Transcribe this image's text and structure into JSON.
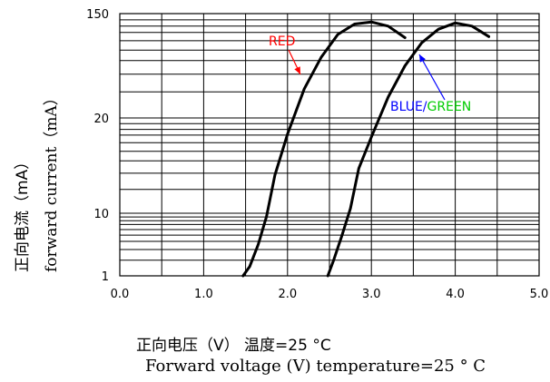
{
  "chart_data": {
    "type": "line",
    "xlabel_cn": "正向电压（V） 温度=25 °C",
    "xlabel_en": "Forward voltage (V) temperature=25 ° C",
    "ylabel_cn": "正向电流（mA）",
    "ylabel_en": "forward current（mA）",
    "x_ticks": [
      "0.0",
      "1.0",
      "2.0",
      "3.0",
      "4.0",
      "5.0"
    ],
    "y_ticks": [
      "1",
      "10",
      "20",
      "150"
    ],
    "xlim": [
      0,
      5
    ],
    "grid": true,
    "colors": {
      "red": "#ff0000",
      "blue": "#0000ff",
      "green": "#00cc00",
      "curve": "#000000"
    },
    "annotations": {
      "red": "RED",
      "blue": "BLUE/",
      "green": "GREEN"
    },
    "series": [
      {
        "name": "RED",
        "x": [
          1.47,
          1.55,
          1.65,
          1.75,
          1.85,
          2.0,
          2.2,
          2.4,
          2.6,
          2.8,
          3.0,
          3.2,
          3.4
        ],
        "y_band": [
          0.0,
          0.15,
          0.5,
          0.95,
          1.4,
          1.83,
          2.28,
          2.58,
          2.8,
          2.9,
          2.92,
          2.88,
          2.77
        ]
      },
      {
        "name": "BLUE/GREEN",
        "x": [
          2.48,
          2.55,
          2.65,
          2.75,
          2.85,
          3.0,
          3.2,
          3.4,
          3.6,
          3.8,
          4.0,
          4.2,
          4.4
        ],
        "y_band": [
          0.0,
          0.25,
          0.65,
          1.05,
          1.47,
          1.8,
          2.2,
          2.5,
          2.72,
          2.85,
          2.91,
          2.88,
          2.78
        ]
      }
    ]
  }
}
